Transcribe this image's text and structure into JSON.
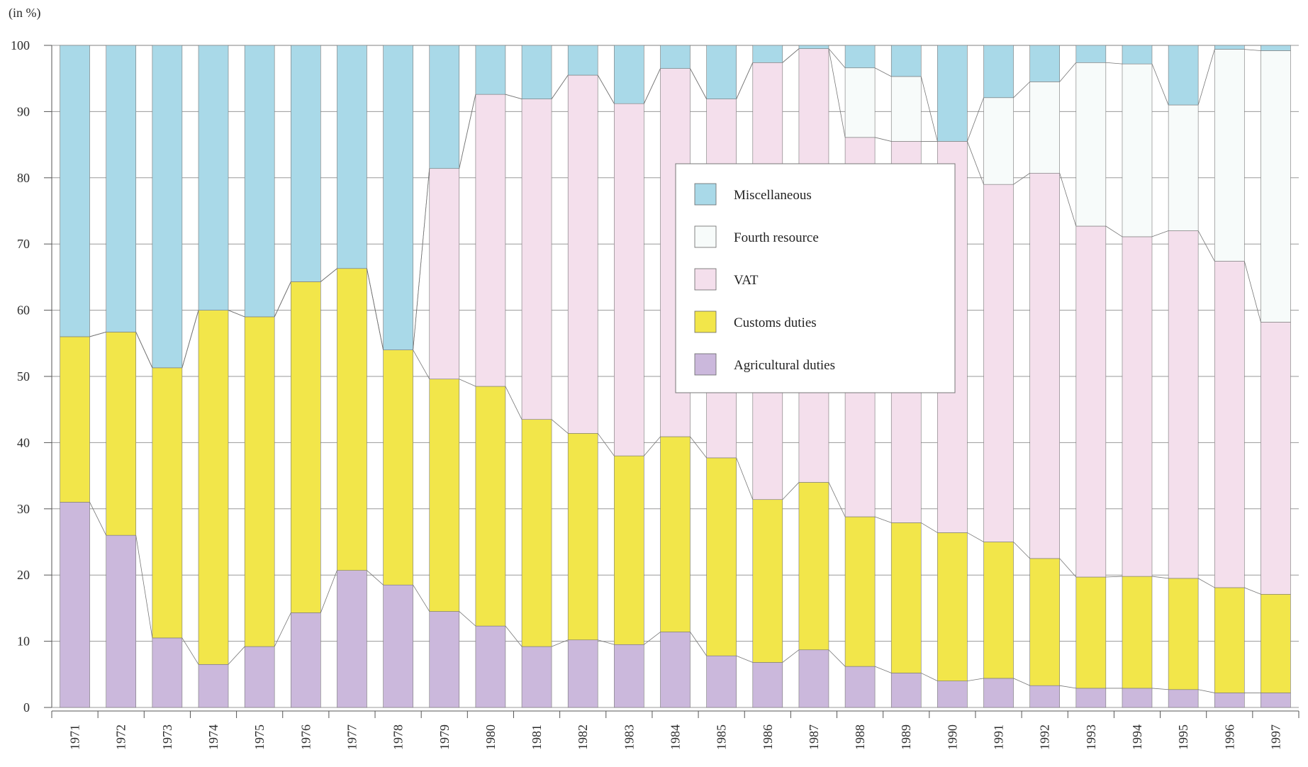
{
  "chart_data": {
    "type": "bar",
    "stacked": true,
    "unit_label": "(in %)",
    "ylim": [
      0,
      100
    ],
    "yticks": [
      0,
      10,
      20,
      30,
      40,
      50,
      60,
      70,
      80,
      90,
      100
    ],
    "grid": true,
    "legend_position": "center",
    "categories": [
      "1971",
      "1972",
      "1973",
      "1974",
      "1975",
      "1976",
      "1977",
      "1978",
      "1979",
      "1980",
      "1981",
      "1982",
      "1983",
      "1984",
      "1985",
      "1986",
      "1987",
      "1988",
      "1989",
      "1990",
      "1991",
      "1992",
      "1993",
      "1994",
      "1995",
      "1996",
      "1997"
    ],
    "series": [
      {
        "name": "Agricultural duties",
        "color": "#cbb8dc",
        "values": [
          31.0,
          26.0,
          10.5,
          6.5,
          9.2,
          14.3,
          20.7,
          18.5,
          14.5,
          12.3,
          9.2,
          10.2,
          9.5,
          11.4,
          7.8,
          6.8,
          8.7,
          6.2,
          5.2,
          4.0,
          4.4,
          3.3,
          2.9,
          2.9,
          2.7,
          2.2,
          2.2
        ]
      },
      {
        "name": "Customs duties",
        "color": "#f2e64a",
        "values": [
          25.0,
          30.7,
          40.8,
          53.5,
          49.8,
          50.0,
          45.6,
          35.5,
          35.1,
          36.2,
          34.3,
          31.2,
          28.5,
          29.5,
          29.9,
          24.6,
          25.3,
          22.6,
          22.7,
          22.4,
          20.6,
          19.2,
          16.8,
          16.9,
          16.8,
          15.9,
          14.9
        ]
      },
      {
        "name": "VAT",
        "color": "#f4dfec",
        "values": [
          0,
          0,
          0,
          0,
          0,
          0,
          0,
          0,
          31.8,
          44.1,
          48.4,
          54.1,
          53.2,
          55.6,
          54.2,
          66.0,
          65.5,
          57.3,
          57.6,
          59.1,
          54.0,
          58.2,
          53.0,
          51.3,
          52.5,
          49.3,
          41.1
        ]
      },
      {
        "name": "Fourth resource",
        "color": "#f7fbfa",
        "values": [
          0,
          0,
          0,
          0,
          0,
          0,
          0,
          0,
          0,
          0,
          0,
          0,
          0,
          0,
          0,
          0,
          0,
          10.5,
          9.8,
          0,
          13.1,
          13.8,
          24.7,
          26.1,
          19.0,
          32.0,
          41.0
        ]
      },
      {
        "name": "Miscellaneous",
        "color": "#a9d9e8",
        "values": [
          44.0,
          43.3,
          48.7,
          40.0,
          41.0,
          35.7,
          33.7,
          46.0,
          18.6,
          7.4,
          8.1,
          4.5,
          8.8,
          3.5,
          8.1,
          2.6,
          0.5,
          3.4,
          4.7,
          14.5,
          7.9,
          5.5,
          2.6,
          2.8,
          9.0,
          0.6,
          0.8
        ]
      }
    ],
    "legend_order": [
      "Miscellaneous",
      "Fourth resource",
      "VAT",
      "Customs duties",
      "Agricultural duties"
    ]
  }
}
